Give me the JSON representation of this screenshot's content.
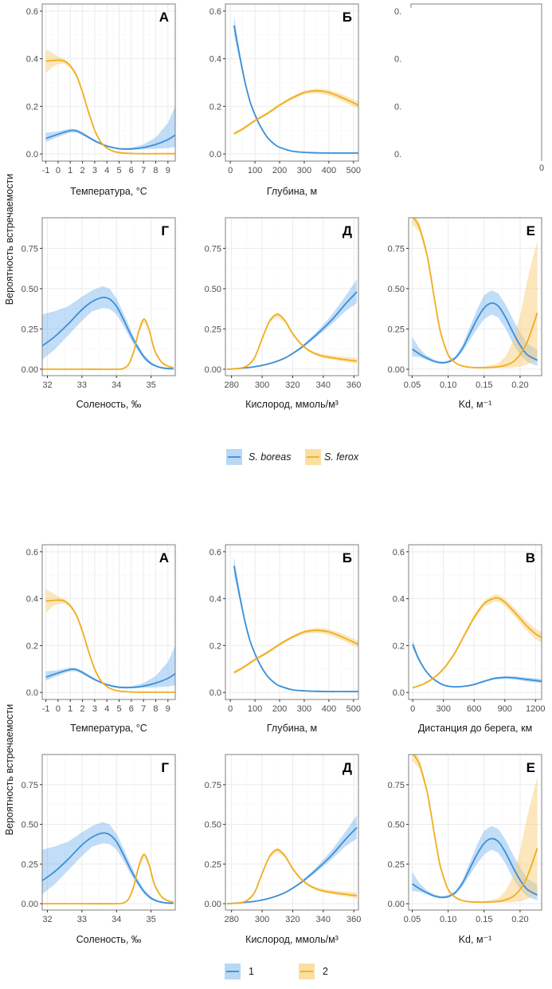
{
  "figures": [
    {
      "id": "top",
      "ylabel": "Вероятность встречаемости",
      "legend": [
        {
          "label": "S. boreas",
          "italic": true,
          "color": "#3a8fd6",
          "fill": "#b8d8f5"
        },
        {
          "label": "S. ferox",
          "italic": true,
          "color": "#f0ae1e",
          "fill": "#fbdf9f"
        }
      ],
      "note": "Panel В (top figure) is largely blank/cropped in the screenshot; only fragments '0.', '0' and the axis title are visible"
    },
    {
      "id": "bottom",
      "ylabel": "Вероятность встречаемости",
      "legend": [
        {
          "label": "1",
          "italic": false,
          "color": "#3a8fd6",
          "fill": "#b8d8f5"
        },
        {
          "label": "2",
          "italic": false,
          "color": "#f0ae1e",
          "fill": "#fbdf9f"
        }
      ]
    }
  ],
  "chart_data": [
    {
      "type": "line",
      "panel": "А",
      "title": "А",
      "xlabel": "Температура, °C",
      "ylabel": "Вероятность встречаемости",
      "xlim": [
        -1.3,
        9.6
      ],
      "ylim": [
        -0.03,
        0.63
      ],
      "xticks": [
        -1,
        0,
        1,
        2,
        3,
        4,
        5,
        6,
        7,
        8,
        9
      ],
      "xtick_labels": [
        "-1",
        "0",
        "1",
        "2",
        "3",
        "4",
        "5",
        "6",
        "7",
        "8",
        "9"
      ],
      "yticks": [
        0,
        0.2,
        0.4,
        0.6
      ],
      "ytick_labels": [
        "0.0",
        "0.2",
        "0.4",
        "0.6"
      ],
      "grid": true,
      "series": [
        {
          "name": "S. boreas",
          "x": [
            -1,
            0,
            1,
            1.5,
            2,
            3,
            4,
            5,
            6,
            7,
            8,
            9,
            9.6
          ],
          "y": [
            0.065,
            0.083,
            0.098,
            0.097,
            0.085,
            0.055,
            0.033,
            0.022,
            0.021,
            0.027,
            0.04,
            0.06,
            0.08
          ],
          "lower": [
            0.05,
            0.072,
            0.09,
            0.09,
            0.078,
            0.05,
            0.03,
            0.019,
            0.018,
            0.02,
            0.022,
            0.025,
            0.03
          ],
          "upper": [
            0.09,
            0.095,
            0.106,
            0.104,
            0.092,
            0.06,
            0.037,
            0.026,
            0.026,
            0.04,
            0.07,
            0.13,
            0.2
          ]
        },
        {
          "name": "S. ferox",
          "x": [
            -1,
            -0.5,
            0,
            0.5,
            1,
            1.5,
            2,
            2.5,
            3,
            3.5,
            4,
            4.5,
            5,
            6,
            7,
            8,
            9.6
          ],
          "y": [
            0.39,
            0.392,
            0.394,
            0.39,
            0.37,
            0.33,
            0.26,
            0.175,
            0.1,
            0.05,
            0.025,
            0.012,
            0.006,
            0.002,
            0.001,
            0.001,
            0.001
          ],
          "lower": [
            0.34,
            0.365,
            0.378,
            0.38,
            0.362,
            0.322,
            0.252,
            0.168,
            0.095,
            0.046,
            0.022,
            0.01,
            0.005,
            0.001,
            0,
            0,
            0
          ],
          "upper": [
            0.44,
            0.425,
            0.41,
            0.4,
            0.378,
            0.338,
            0.268,
            0.182,
            0.105,
            0.054,
            0.028,
            0.014,
            0.008,
            0.003,
            0.002,
            0.002,
            0.002
          ]
        }
      ]
    },
    {
      "type": "line",
      "panel": "Б",
      "title": "Б",
      "xlabel": "Глубина, м",
      "ylabel": "",
      "xlim": [
        -20,
        520
      ],
      "ylim": [
        -0.03,
        0.63
      ],
      "xticks": [
        0,
        100,
        200,
        300,
        400,
        500
      ],
      "xtick_labels": [
        "0",
        "100",
        "200",
        "300",
        "400",
        "500"
      ],
      "yticks": [
        0,
        0.2,
        0.4,
        0.6
      ],
      "ytick_labels": [
        "0.0",
        "0.2",
        "0.4",
        "0.6"
      ],
      "grid": true,
      "series": [
        {
          "name": "S. boreas",
          "x": [
            15,
            40,
            60,
            80,
            100,
            120,
            150,
            180,
            200,
            250,
            300,
            350,
            400,
            450,
            520
          ],
          "y": [
            0.54,
            0.4,
            0.3,
            0.22,
            0.165,
            0.12,
            0.07,
            0.04,
            0.028,
            0.012,
            0.007,
            0.005,
            0.004,
            0.004,
            0.004
          ],
          "lower": [
            0.5,
            0.38,
            0.29,
            0.214,
            0.16,
            0.116,
            0.067,
            0.038,
            0.026,
            0.011,
            0.006,
            0.004,
            0.003,
            0.003,
            0.003
          ],
          "upper": [
            0.58,
            0.42,
            0.31,
            0.226,
            0.17,
            0.124,
            0.073,
            0.042,
            0.03,
            0.013,
            0.008,
            0.006,
            0.005,
            0.005,
            0.005
          ]
        },
        {
          "name": "S. ferox",
          "x": [
            15,
            50,
            100,
            150,
            200,
            250,
            300,
            350,
            400,
            450,
            520
          ],
          "y": [
            0.085,
            0.105,
            0.14,
            0.17,
            0.205,
            0.235,
            0.258,
            0.265,
            0.258,
            0.238,
            0.205
          ],
          "lower": [
            0.078,
            0.099,
            0.134,
            0.164,
            0.198,
            0.228,
            0.25,
            0.255,
            0.246,
            0.224,
            0.19
          ],
          "upper": [
            0.092,
            0.111,
            0.146,
            0.176,
            0.212,
            0.242,
            0.266,
            0.275,
            0.27,
            0.252,
            0.22
          ]
        }
      ]
    },
    {
      "type": "line",
      "panel": "В",
      "title": "В",
      "xlabel": "Дистанция до берега, км",
      "ylabel": "",
      "xlim": [
        -40,
        1260
      ],
      "ylim": [
        -0.03,
        0.63
      ],
      "xticks": [
        0,
        300,
        600,
        900,
        1200
      ],
      "xtick_labels": [
        "0",
        "300",
        "600",
        "900",
        "1200"
      ],
      "yticks": [
        0,
        0.2,
        0.4,
        0.6
      ],
      "ytick_labels": [
        "0.0",
        "0.2",
        "0.4",
        "0.6"
      ],
      "grid": true,
      "series": [
        {
          "name": "S. boreas",
          "x": [
            0,
            50,
            100,
            150,
            200,
            300,
            400,
            500,
            600,
            700,
            800,
            900,
            1000,
            1100,
            1260
          ],
          "y": [
            0.205,
            0.15,
            0.11,
            0.08,
            0.058,
            0.032,
            0.024,
            0.026,
            0.034,
            0.048,
            0.06,
            0.064,
            0.062,
            0.056,
            0.048
          ],
          "lower": [
            0.19,
            0.14,
            0.104,
            0.076,
            0.055,
            0.03,
            0.022,
            0.024,
            0.031,
            0.044,
            0.055,
            0.058,
            0.055,
            0.048,
            0.04
          ],
          "upper": [
            0.225,
            0.16,
            0.116,
            0.084,
            0.061,
            0.034,
            0.026,
            0.028,
            0.037,
            0.052,
            0.065,
            0.07,
            0.069,
            0.064,
            0.058
          ]
        },
        {
          "name": "S. ferox",
          "x": [
            0,
            100,
            200,
            300,
            400,
            500,
            600,
            700,
            800,
            850,
            900,
            1000,
            1100,
            1200,
            1260
          ],
          "y": [
            0.02,
            0.035,
            0.06,
            0.1,
            0.16,
            0.24,
            0.32,
            0.38,
            0.402,
            0.4,
            0.385,
            0.34,
            0.29,
            0.25,
            0.235
          ],
          "lower": [
            0.017,
            0.031,
            0.056,
            0.094,
            0.152,
            0.232,
            0.31,
            0.368,
            0.388,
            0.386,
            0.37,
            0.322,
            0.27,
            0.228,
            0.212
          ],
          "upper": [
            0.023,
            0.039,
            0.064,
            0.106,
            0.168,
            0.248,
            0.33,
            0.392,
            0.418,
            0.415,
            0.4,
            0.358,
            0.31,
            0.272,
            0.258
          ]
        }
      ]
    },
    {
      "type": "line",
      "panel": "Г",
      "title": "Г",
      "xlabel": "Соленость, ‰",
      "ylabel": "Вероятность встречаемости",
      "xlim": [
        31.85,
        35.7
      ],
      "ylim": [
        -0.04,
        0.94
      ],
      "xticks": [
        32,
        33,
        34,
        35
      ],
      "xtick_labels": [
        "32",
        "33",
        "34",
        "35"
      ],
      "yticks": [
        0,
        0.25,
        0.5,
        0.75
      ],
      "ytick_labels": [
        "0.00",
        "0.25",
        "0.50",
        "0.75"
      ],
      "grid": true,
      "series": [
        {
          "name": "S. boreas",
          "x": [
            31.85,
            32.2,
            32.6,
            33,
            33.3,
            33.6,
            33.8,
            34,
            34.2,
            34.4,
            34.6,
            34.8,
            35,
            35.2,
            35.4,
            35.65
          ],
          "y": [
            0.145,
            0.2,
            0.28,
            0.37,
            0.42,
            0.445,
            0.435,
            0.39,
            0.31,
            0.22,
            0.14,
            0.075,
            0.035,
            0.015,
            0.006,
            0.002
          ],
          "lower": [
            0.06,
            0.12,
            0.21,
            0.3,
            0.36,
            0.38,
            0.375,
            0.34,
            0.27,
            0.19,
            0.12,
            0.06,
            0.025,
            0.01,
            0.003,
            0.001
          ],
          "upper": [
            0.34,
            0.36,
            0.39,
            0.45,
            0.49,
            0.515,
            0.5,
            0.44,
            0.35,
            0.25,
            0.16,
            0.09,
            0.045,
            0.02,
            0.009,
            0.004
          ]
        },
        {
          "name": "S. ferox",
          "x": [
            31.85,
            33,
            34,
            34.2,
            34.35,
            34.5,
            34.65,
            34.8,
            34.95,
            35.1,
            35.3,
            35.5,
            35.65
          ],
          "y": [
            0,
            0,
            0,
            0.005,
            0.03,
            0.11,
            0.24,
            0.31,
            0.24,
            0.12,
            0.045,
            0.018,
            0.01
          ],
          "lower": [
            0,
            0,
            0,
            0.004,
            0.026,
            0.1,
            0.228,
            0.295,
            0.228,
            0.112,
            0.04,
            0.014,
            0.007
          ],
          "upper": [
            0,
            0,
            0,
            0.006,
            0.034,
            0.12,
            0.252,
            0.325,
            0.252,
            0.128,
            0.05,
            0.022,
            0.013
          ]
        }
      ]
    },
    {
      "type": "line",
      "panel": "Д",
      "title": "Д",
      "xlabel": "Кислород, ммоль/м³",
      "ylabel": "",
      "xlim": [
        276,
        363
      ],
      "ylim": [
        -0.04,
        0.94
      ],
      "xticks": [
        280,
        300,
        320,
        340,
        360
      ],
      "xtick_labels": [
        "280",
        "300",
        "320",
        "340",
        "360"
      ],
      "yticks": [
        0,
        0.25,
        0.5,
        0.75
      ],
      "ytick_labels": [
        "0.00",
        "0.25",
        "0.50",
        "0.75"
      ],
      "grid": true,
      "series": [
        {
          "name": "S. boreas",
          "x": [
            277,
            285,
            295,
            305,
            315,
            325,
            335,
            345,
            355,
            362
          ],
          "y": [
            0.0,
            0.005,
            0.015,
            0.035,
            0.07,
            0.13,
            0.21,
            0.3,
            0.41,
            0.48
          ],
          "lower": [
            0,
            0.004,
            0.013,
            0.032,
            0.066,
            0.122,
            0.195,
            0.275,
            0.365,
            0.41
          ],
          "upper": [
            0.002,
            0.006,
            0.017,
            0.038,
            0.074,
            0.138,
            0.225,
            0.33,
            0.46,
            0.56
          ]
        },
        {
          "name": "S. ferox",
          "x": [
            277,
            285,
            290,
            295,
            300,
            305,
            310,
            315,
            320,
            325,
            330,
            335,
            340,
            350,
            362
          ],
          "y": [
            0,
            0.005,
            0.02,
            0.07,
            0.19,
            0.3,
            0.34,
            0.3,
            0.22,
            0.16,
            0.12,
            0.095,
            0.08,
            0.065,
            0.05
          ],
          "lower": [
            0,
            0.004,
            0.017,
            0.064,
            0.182,
            0.29,
            0.325,
            0.288,
            0.21,
            0.152,
            0.112,
            0.086,
            0.07,
            0.053,
            0.035
          ],
          "upper": [
            0.001,
            0.006,
            0.023,
            0.076,
            0.198,
            0.31,
            0.355,
            0.312,
            0.23,
            0.168,
            0.128,
            0.104,
            0.092,
            0.08,
            0.07
          ]
        }
      ]
    },
    {
      "type": "line",
      "panel": "Е",
      "title": "Е",
      "xlabel": "Kd, м⁻¹",
      "ylabel": "",
      "xlim": [
        0.045,
        0.23
      ],
      "ylim": [
        -0.04,
        0.94
      ],
      "xticks": [
        0.05,
        0.1,
        0.15,
        0.2
      ],
      "xtick_labels": [
        "0.05",
        "0.10",
        "0.15",
        "0.20"
      ],
      "yticks": [
        0,
        0.25,
        0.5,
        0.75
      ],
      "ytick_labels": [
        "0.00",
        "0.25",
        "0.50",
        "0.75"
      ],
      "grid": true,
      "series": [
        {
          "name": "S. boreas",
          "x": [
            0.05,
            0.06,
            0.07,
            0.08,
            0.09,
            0.1,
            0.11,
            0.12,
            0.13,
            0.14,
            0.15,
            0.16,
            0.17,
            0.18,
            0.19,
            0.2,
            0.21,
            0.224
          ],
          "y": [
            0.125,
            0.095,
            0.07,
            0.05,
            0.04,
            0.045,
            0.07,
            0.13,
            0.22,
            0.31,
            0.38,
            0.41,
            0.39,
            0.32,
            0.23,
            0.15,
            0.09,
            0.055
          ],
          "lower": [
            0.08,
            0.075,
            0.058,
            0.042,
            0.033,
            0.038,
            0.06,
            0.11,
            0.18,
            0.25,
            0.31,
            0.34,
            0.32,
            0.25,
            0.16,
            0.09,
            0.045,
            0.02
          ],
          "upper": [
            0.2,
            0.13,
            0.085,
            0.06,
            0.048,
            0.054,
            0.082,
            0.15,
            0.26,
            0.37,
            0.46,
            0.49,
            0.47,
            0.4,
            0.31,
            0.23,
            0.16,
            0.12
          ]
        },
        {
          "name": "S. ferox",
          "x": [
            0.05,
            0.06,
            0.07,
            0.075,
            0.08,
            0.085,
            0.09,
            0.1,
            0.11,
            0.12,
            0.13,
            0.15,
            0.17,
            0.18,
            0.19,
            0.2,
            0.21,
            0.224
          ],
          "y": [
            0.95,
            0.88,
            0.72,
            0.6,
            0.46,
            0.33,
            0.22,
            0.09,
            0.04,
            0.02,
            0.012,
            0.01,
            0.015,
            0.025,
            0.045,
            0.09,
            0.17,
            0.35
          ],
          "lower": [
            0.9,
            0.85,
            0.7,
            0.58,
            0.445,
            0.32,
            0.21,
            0.084,
            0.036,
            0.017,
            0.009,
            0.006,
            0.006,
            0.008,
            0.01,
            0.015,
            0.03,
            0.06
          ],
          "upper": [
            1.0,
            0.91,
            0.74,
            0.62,
            0.475,
            0.34,
            0.23,
            0.096,
            0.044,
            0.023,
            0.016,
            0.016,
            0.035,
            0.08,
            0.17,
            0.33,
            0.55,
            0.8
          ]
        }
      ]
    }
  ]
}
